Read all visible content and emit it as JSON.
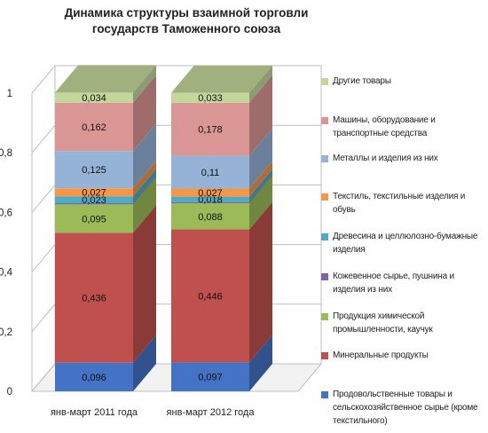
{
  "chart_data": {
    "type": "bar",
    "stacked": true,
    "title": "Динамика структуры  взаимной торговли государств Таможенного союза",
    "categories": [
      "янв-март 2011 года",
      "янв-март 2012 года"
    ],
    "ylim": [
      0,
      1
    ],
    "yticks": [
      "0",
      "0,2",
      "0,4",
      "0,6",
      "0,8",
      "1"
    ],
    "ytick_values": [
      0,
      0.2,
      0.4,
      0.6,
      0.8,
      1
    ],
    "grid": true,
    "legend_position": "right",
    "series": [
      {
        "name": "Продовольственные товары и сельскохозяйственное сырье (кроме текстильного)",
        "values": [
          0.096,
          0.097
        ],
        "labels": [
          "0,096",
          "0,097"
        ],
        "color": "#4472c4"
      },
      {
        "name": "Минеральные продукты",
        "values": [
          0.436,
          0.446
        ],
        "labels": [
          "0,436",
          "0,446"
        ],
        "color": "#c0504d"
      },
      {
        "name": "Продукция химической промышленности, каучук",
        "values": [
          0.095,
          0.088
        ],
        "labels": [
          "0,095",
          "0,088"
        ],
        "color": "#9bbb59"
      },
      {
        "name": "Кожевенное сырье, пушнина и изделия из них",
        "values": [
          0.004,
          0.004
        ],
        "labels": [
          "",
          ""
        ],
        "color": "#8064a2"
      },
      {
        "name": "Древесина и целлюлозно-бумажные изделия",
        "values": [
          0.023,
          0.018
        ],
        "labels": [
          "0,023",
          "0,018"
        ],
        "color": "#4bacc6"
      },
      {
        "name": "Текстиль, текстильные изделия и обувь",
        "values": [
          0.027,
          0.027
        ],
        "labels": [
          "0,027",
          "0,027"
        ],
        "color": "#f79646"
      },
      {
        "name": "Металлы и изделия из них",
        "values": [
          0.125,
          0.11
        ],
        "labels": [
          "0,125",
          "0,11"
        ],
        "color": "#95b3d7"
      },
      {
        "name": "Машины, оборудование и транспортные средства",
        "values": [
          0.162,
          0.178
        ],
        "labels": [
          "0,162",
          "0,178"
        ],
        "color": "#da9694"
      },
      {
        "name": "Другие товары",
        "values": [
          0.034,
          0.033
        ],
        "labels": [
          "0,034",
          "0,033"
        ],
        "color": "#c4d79b"
      }
    ]
  }
}
